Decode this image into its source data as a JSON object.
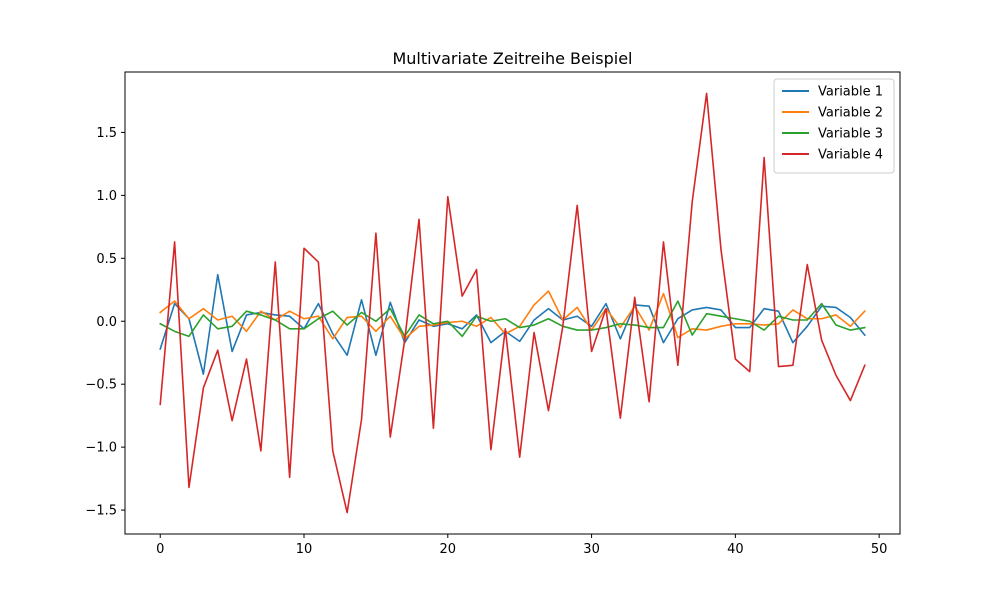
{
  "chart_data": {
    "type": "line",
    "title": "Multivariate Zeitreihe Beispiel",
    "xlabel": "",
    "ylabel": "",
    "xlim": [
      -2.45,
      51.45
    ],
    "ylim": [
      -1.69,
      1.98
    ],
    "xticks": [
      0,
      10,
      20,
      30,
      40,
      50
    ],
    "xtick_labels": [
      "0",
      "10",
      "20",
      "30",
      "40",
      "50"
    ],
    "yticks": [
      -1.5,
      -1.0,
      -0.5,
      0.0,
      0.5,
      1.0,
      1.5
    ],
    "ytick_labels": [
      "−1.5",
      "−1.0",
      "−0.5",
      "0.0",
      "0.5",
      "1.0",
      "1.5"
    ],
    "grid": false,
    "legend_position": "upper-right",
    "x": [
      0,
      1,
      2,
      3,
      4,
      5,
      6,
      7,
      8,
      9,
      10,
      11,
      12,
      13,
      14,
      15,
      16,
      17,
      18,
      19,
      20,
      21,
      22,
      23,
      24,
      25,
      26,
      27,
      28,
      29,
      30,
      31,
      32,
      33,
      34,
      35,
      36,
      37,
      38,
      39,
      40,
      41,
      42,
      43,
      44,
      45,
      46,
      47,
      48,
      49
    ],
    "series": [
      {
        "name": "Variable 1",
        "color": "#1f77b4",
        "values": [
          -0.22,
          0.14,
          0.02,
          -0.42,
          0.37,
          -0.24,
          0.05,
          0.07,
          0.05,
          0.04,
          -0.06,
          0.14,
          -0.1,
          -0.27,
          0.17,
          -0.27,
          0.15,
          -0.17,
          0.01,
          -0.04,
          -0.02,
          -0.06,
          0.05,
          -0.17,
          -0.08,
          -0.16,
          0.01,
          0.1,
          0.01,
          0.04,
          -0.04,
          0.14,
          -0.14,
          0.13,
          0.12,
          -0.17,
          0.02,
          0.09,
          0.11,
          0.09,
          -0.05,
          -0.05,
          0.1,
          0.08,
          -0.17,
          -0.04,
          0.12,
          0.11,
          0.03,
          -0.11
        ]
      },
      {
        "name": "Variable 2",
        "color": "#ff7f0e",
        "values": [
          0.07,
          0.16,
          0.02,
          0.1,
          0.01,
          0.04,
          -0.08,
          0.08,
          0.01,
          0.08,
          0.02,
          0.04,
          -0.14,
          0.03,
          0.04,
          -0.08,
          0.04,
          -0.14,
          -0.04,
          -0.03,
          -0.01,
          0.0,
          -0.04,
          0.03,
          -0.1,
          -0.04,
          0.13,
          0.24,
          0.01,
          0.11,
          -0.07,
          0.1,
          -0.05,
          0.12,
          -0.07,
          0.22,
          -0.13,
          -0.06,
          -0.07,
          -0.04,
          -0.02,
          -0.02,
          -0.03,
          -0.02,
          0.09,
          0.02,
          0.02,
          0.05,
          -0.04,
          0.08
        ]
      },
      {
        "name": "Variable 3",
        "color": "#2ca02c",
        "values": [
          -0.02,
          -0.08,
          -0.12,
          0.05,
          -0.06,
          -0.04,
          0.08,
          0.05,
          0.01,
          -0.06,
          -0.06,
          0.02,
          0.08,
          -0.03,
          0.07,
          0.0,
          0.1,
          -0.12,
          0.05,
          -0.02,
          0.0,
          -0.12,
          0.04,
          0.0,
          0.02,
          -0.05,
          -0.03,
          0.02,
          -0.04,
          -0.07,
          -0.07,
          -0.05,
          -0.02,
          -0.03,
          -0.05,
          -0.05,
          0.16,
          -0.11,
          0.06,
          0.04,
          0.02,
          0.0,
          -0.07,
          0.04,
          0.01,
          0.01,
          0.14,
          -0.03,
          -0.07,
          -0.05
        ]
      },
      {
        "name": "Variable 4",
        "color": "#d62728",
        "values": [
          -0.66,
          0.63,
          -1.32,
          -0.53,
          -0.23,
          -0.79,
          -0.3,
          -1.03,
          0.47,
          -1.24,
          0.58,
          0.47,
          -1.03,
          -1.52,
          -0.78,
          0.7,
          -0.92,
          -0.15,
          0.81,
          -0.85,
          0.99,
          0.2,
          0.41,
          -1.02,
          -0.06,
          -1.08,
          -0.09,
          -0.71,
          -0.04,
          0.92,
          -0.24,
          0.1,
          -0.77,
          0.19,
          -0.64,
          0.63,
          -0.35,
          0.95,
          1.81,
          0.57,
          -0.3,
          -0.4,
          1.3,
          -0.36,
          -0.35,
          0.45,
          -0.15,
          -0.43,
          -0.63,
          -0.35
        ]
      }
    ]
  }
}
